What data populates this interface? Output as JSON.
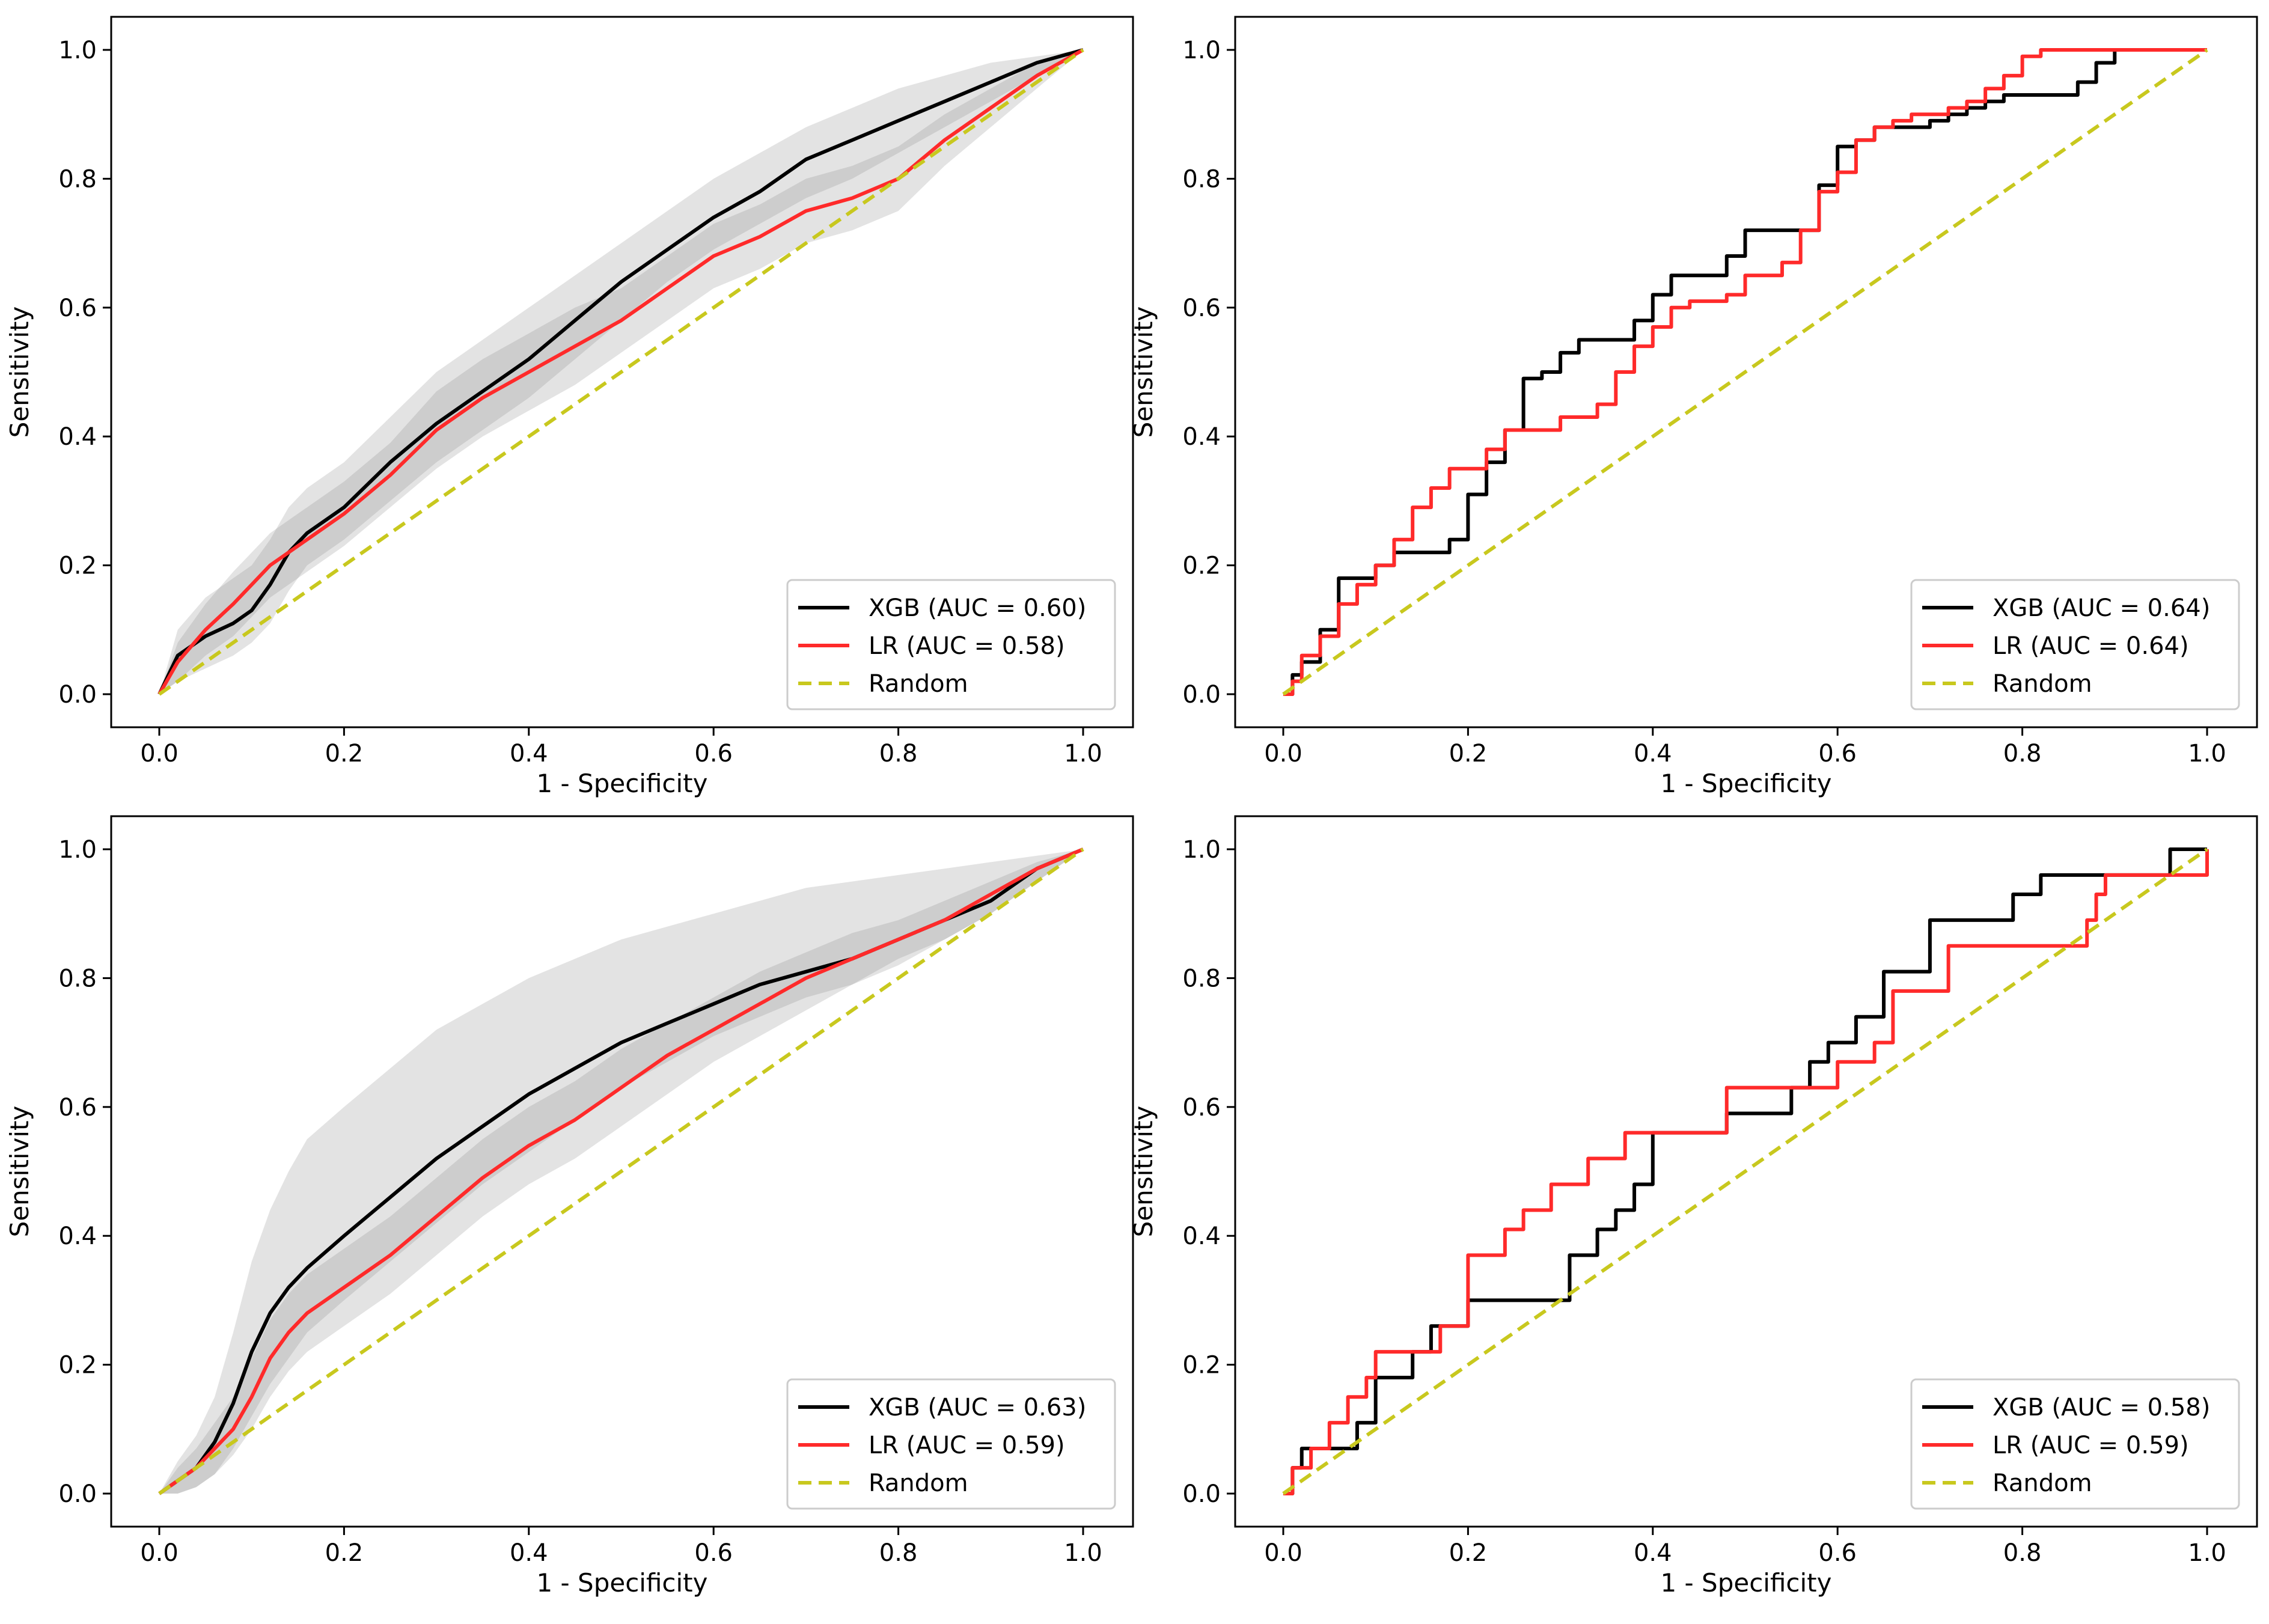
{
  "chart_data": [
    {
      "type": "line",
      "panel": "top-left",
      "xlabel": "1 - Specificity",
      "ylabel": "Sensitivity",
      "xlim": [
        0,
        1
      ],
      "ylim": [
        0,
        1
      ],
      "xticks": [
        "0.0",
        "0.2",
        "0.4",
        "0.6",
        "0.8",
        "1.0"
      ],
      "yticks": [
        "0.0",
        "0.2",
        "0.4",
        "0.6",
        "0.8",
        "1.0"
      ],
      "legend_position": "lower-right",
      "series": [
        {
          "name": "XGB (AUC = 0.60)",
          "color": "#000000",
          "style": "solid",
          "x": [
            0,
            0.02,
            0.05,
            0.08,
            0.1,
            0.12,
            0.14,
            0.16,
            0.2,
            0.25,
            0.3,
            0.35,
            0.4,
            0.45,
            0.5,
            0.55,
            0.6,
            0.65,
            0.7,
            0.75,
            0.8,
            0.85,
            0.9,
            0.95,
            1.0
          ],
          "y": [
            0,
            0.06,
            0.09,
            0.11,
            0.13,
            0.17,
            0.22,
            0.25,
            0.29,
            0.36,
            0.42,
            0.47,
            0.52,
            0.58,
            0.64,
            0.69,
            0.74,
            0.78,
            0.83,
            0.86,
            0.89,
            0.92,
            0.95,
            0.98,
            1.0
          ],
          "band": {
            "lower": [
              0,
              0.02,
              0.04,
              0.06,
              0.08,
              0.11,
              0.16,
              0.2,
              0.24,
              0.3,
              0.36,
              0.41,
              0.46,
              0.52,
              0.58,
              0.64,
              0.69,
              0.73,
              0.77,
              0.8,
              0.84,
              0.88,
              0.92,
              0.96,
              1.0
            ],
            "upper": [
              0,
              0.1,
              0.15,
              0.18,
              0.2,
              0.24,
              0.29,
              0.32,
              0.36,
              0.43,
              0.5,
              0.55,
              0.6,
              0.65,
              0.7,
              0.75,
              0.8,
              0.84,
              0.88,
              0.91,
              0.94,
              0.96,
              0.98,
              0.99,
              1.0
            ]
          }
        },
        {
          "name": "LR (AUC = 0.58)",
          "color": "#ff2a2a",
          "style": "solid",
          "x": [
            0,
            0.02,
            0.05,
            0.08,
            0.1,
            0.12,
            0.15,
            0.2,
            0.25,
            0.3,
            0.35,
            0.4,
            0.45,
            0.5,
            0.55,
            0.6,
            0.65,
            0.7,
            0.75,
            0.8,
            0.85,
            0.9,
            0.95,
            1.0
          ],
          "y": [
            0,
            0.05,
            0.1,
            0.14,
            0.17,
            0.2,
            0.23,
            0.28,
            0.34,
            0.41,
            0.46,
            0.5,
            0.54,
            0.58,
            0.63,
            0.68,
            0.71,
            0.75,
            0.77,
            0.8,
            0.86,
            0.91,
            0.96,
            1.0
          ],
          "band": {
            "lower": [
              0,
              0.02,
              0.06,
              0.09,
              0.12,
              0.15,
              0.18,
              0.23,
              0.29,
              0.35,
              0.4,
              0.44,
              0.48,
              0.53,
              0.58,
              0.63,
              0.66,
              0.7,
              0.72,
              0.75,
              0.82,
              0.88,
              0.94,
              1.0
            ],
            "upper": [
              0,
              0.08,
              0.14,
              0.19,
              0.22,
              0.25,
              0.28,
              0.33,
              0.39,
              0.47,
              0.52,
              0.56,
              0.6,
              0.63,
              0.68,
              0.73,
              0.76,
              0.8,
              0.82,
              0.85,
              0.9,
              0.94,
              0.98,
              1.0
            ]
          }
        },
        {
          "name": "Random",
          "color": "#c8c81e",
          "style": "dashed",
          "x": [
            0,
            1
          ],
          "y": [
            0,
            1
          ]
        }
      ]
    },
    {
      "type": "line",
      "panel": "top-right",
      "xlabel": "1 - Specificity",
      "ylabel": "Sensitivity",
      "xlim": [
        0,
        1
      ],
      "ylim": [
        0,
        1
      ],
      "xticks": [
        "0.0",
        "0.2",
        "0.4",
        "0.6",
        "0.8",
        "1.0"
      ],
      "yticks": [
        "0.0",
        "0.2",
        "0.4",
        "0.6",
        "0.8",
        "1.0"
      ],
      "legend_position": "lower-right",
      "series": [
        {
          "name": "XGB (AUC = 0.64)",
          "color": "#000000",
          "style": "step",
          "x": [
            0,
            0.01,
            0.02,
            0.04,
            0.06,
            0.08,
            0.1,
            0.12,
            0.14,
            0.16,
            0.18,
            0.2,
            0.22,
            0.24,
            0.26,
            0.28,
            0.3,
            0.32,
            0.34,
            0.36,
            0.38,
            0.4,
            0.42,
            0.44,
            0.46,
            0.48,
            0.5,
            0.52,
            0.54,
            0.56,
            0.58,
            0.6,
            0.62,
            0.64,
            0.66,
            0.68,
            0.7,
            0.72,
            0.74,
            0.76,
            0.78,
            0.8,
            0.82,
            0.84,
            0.86,
            0.88,
            0.9,
            1.0
          ],
          "y": [
            0,
            0.03,
            0.05,
            0.1,
            0.18,
            0.18,
            0.2,
            0.22,
            0.22,
            0.22,
            0.24,
            0.31,
            0.36,
            0.41,
            0.49,
            0.5,
            0.53,
            0.55,
            0.55,
            0.55,
            0.58,
            0.62,
            0.65,
            0.65,
            0.65,
            0.68,
            0.72,
            0.72,
            0.72,
            0.72,
            0.79,
            0.85,
            0.86,
            0.88,
            0.88,
            0.88,
            0.89,
            0.9,
            0.91,
            0.92,
            0.93,
            0.93,
            0.93,
            0.93,
            0.95,
            0.98,
            1.0,
            1.0
          ]
        },
        {
          "name": "LR (AUC = 0.64)",
          "color": "#ff2a2a",
          "style": "step",
          "x": [
            0,
            0.01,
            0.02,
            0.04,
            0.06,
            0.08,
            0.1,
            0.12,
            0.14,
            0.16,
            0.18,
            0.2,
            0.22,
            0.24,
            0.26,
            0.28,
            0.3,
            0.32,
            0.34,
            0.36,
            0.38,
            0.4,
            0.42,
            0.44,
            0.46,
            0.48,
            0.5,
            0.52,
            0.54,
            0.56,
            0.58,
            0.6,
            0.62,
            0.64,
            0.66,
            0.68,
            0.7,
            0.72,
            0.74,
            0.76,
            0.78,
            0.8,
            0.82,
            1.0
          ],
          "y": [
            0,
            0.02,
            0.06,
            0.09,
            0.14,
            0.17,
            0.2,
            0.24,
            0.29,
            0.32,
            0.35,
            0.35,
            0.38,
            0.41,
            0.41,
            0.41,
            0.43,
            0.43,
            0.45,
            0.5,
            0.54,
            0.57,
            0.6,
            0.61,
            0.61,
            0.62,
            0.65,
            0.65,
            0.67,
            0.72,
            0.78,
            0.81,
            0.86,
            0.88,
            0.89,
            0.9,
            0.9,
            0.91,
            0.92,
            0.94,
            0.96,
            0.99,
            1.0,
            1.0
          ]
        },
        {
          "name": "Random",
          "color": "#c8c81e",
          "style": "dashed",
          "x": [
            0,
            1
          ],
          "y": [
            0,
            1
          ]
        }
      ]
    },
    {
      "type": "line",
      "panel": "bottom-left",
      "xlabel": "1 - Specificity",
      "ylabel": "Sensitivity",
      "xlim": [
        0,
        1
      ],
      "ylim": [
        0,
        1
      ],
      "xticks": [
        "0.0",
        "0.2",
        "0.4",
        "0.6",
        "0.8",
        "1.0"
      ],
      "yticks": [
        "0.0",
        "0.2",
        "0.4",
        "0.6",
        "0.8",
        "1.0"
      ],
      "legend_position": "lower-right",
      "series": [
        {
          "name": "XGB (AUC = 0.63)",
          "color": "#000000",
          "style": "solid",
          "x": [
            0,
            0.02,
            0.04,
            0.06,
            0.08,
            0.1,
            0.12,
            0.14,
            0.16,
            0.2,
            0.25,
            0.3,
            0.35,
            0.4,
            0.45,
            0.5,
            0.55,
            0.6,
            0.65,
            0.7,
            0.75,
            0.8,
            0.85,
            0.9,
            0.95,
            1.0
          ],
          "y": [
            0,
            0.02,
            0.04,
            0.08,
            0.14,
            0.22,
            0.28,
            0.32,
            0.35,
            0.4,
            0.46,
            0.52,
            0.57,
            0.62,
            0.66,
            0.7,
            0.73,
            0.76,
            0.79,
            0.81,
            0.83,
            0.86,
            0.89,
            0.92,
            0.97,
            1.0
          ],
          "band": {
            "lower": [
              0,
              0.0,
              0.01,
              0.03,
              0.07,
              0.12,
              0.17,
              0.21,
              0.25,
              0.3,
              0.36,
              0.42,
              0.48,
              0.53,
              0.58,
              0.63,
              0.67,
              0.71,
              0.74,
              0.77,
              0.79,
              0.82,
              0.86,
              0.9,
              0.95,
              1.0
            ],
            "upper": [
              0,
              0.05,
              0.09,
              0.15,
              0.25,
              0.36,
              0.44,
              0.5,
              0.55,
              0.6,
              0.66,
              0.72,
              0.76,
              0.8,
              0.83,
              0.86,
              0.88,
              0.9,
              0.92,
              0.94,
              0.95,
              0.96,
              0.97,
              0.98,
              0.99,
              1.0
            ]
          }
        },
        {
          "name": "LR (AUC = 0.59)",
          "color": "#ff2a2a",
          "style": "solid",
          "x": [
            0,
            0.02,
            0.04,
            0.06,
            0.08,
            0.1,
            0.12,
            0.14,
            0.16,
            0.2,
            0.25,
            0.3,
            0.35,
            0.4,
            0.45,
            0.5,
            0.55,
            0.6,
            0.65,
            0.7,
            0.75,
            0.8,
            0.85,
            0.9,
            0.95,
            1.0
          ],
          "y": [
            0,
            0.02,
            0.04,
            0.07,
            0.1,
            0.15,
            0.21,
            0.25,
            0.28,
            0.32,
            0.37,
            0.43,
            0.49,
            0.54,
            0.58,
            0.63,
            0.68,
            0.72,
            0.76,
            0.8,
            0.83,
            0.86,
            0.89,
            0.93,
            0.97,
            1.0
          ],
          "band": {
            "lower": [
              0,
              0.0,
              0.01,
              0.03,
              0.06,
              0.1,
              0.15,
              0.19,
              0.22,
              0.26,
              0.31,
              0.37,
              0.43,
              0.48,
              0.52,
              0.57,
              0.62,
              0.67,
              0.71,
              0.75,
              0.79,
              0.83,
              0.86,
              0.9,
              0.95,
              1.0
            ],
            "upper": [
              0,
              0.04,
              0.07,
              0.11,
              0.15,
              0.21,
              0.27,
              0.31,
              0.34,
              0.38,
              0.43,
              0.49,
              0.55,
              0.6,
              0.64,
              0.69,
              0.73,
              0.77,
              0.81,
              0.84,
              0.87,
              0.89,
              0.92,
              0.95,
              0.98,
              1.0
            ]
          }
        },
        {
          "name": "Random",
          "color": "#c8c81e",
          "style": "dashed",
          "x": [
            0,
            1
          ],
          "y": [
            0,
            1
          ]
        }
      ]
    },
    {
      "type": "line",
      "panel": "bottom-right",
      "xlabel": "1 - Specificity",
      "ylabel": "Sensitivity",
      "xlim": [
        0,
        1
      ],
      "ylim": [
        0,
        1
      ],
      "xticks": [
        "0.0",
        "0.2",
        "0.4",
        "0.6",
        "0.8",
        "1.0"
      ],
      "yticks": [
        "0.0",
        "0.2",
        "0.4",
        "0.6",
        "0.8",
        "1.0"
      ],
      "legend_position": "lower-right",
      "series": [
        {
          "name": "XGB (AUC = 0.58)",
          "color": "#000000",
          "style": "step",
          "x": [
            0,
            0.01,
            0.02,
            0.04,
            0.06,
            0.08,
            0.1,
            0.12,
            0.14,
            0.16,
            0.18,
            0.2,
            0.24,
            0.28,
            0.3,
            0.31,
            0.32,
            0.34,
            0.36,
            0.38,
            0.4,
            0.42,
            0.46,
            0.48,
            0.52,
            0.55,
            0.57,
            0.59,
            0.62,
            0.65,
            0.68,
            0.7,
            0.72,
            0.76,
            0.79,
            0.82,
            0.86,
            0.9,
            0.96,
            1.0
          ],
          "y": [
            0,
            0.04,
            0.07,
            0.07,
            0.07,
            0.11,
            0.18,
            0.18,
            0.22,
            0.26,
            0.26,
            0.3,
            0.3,
            0.3,
            0.3,
            0.37,
            0.37,
            0.41,
            0.44,
            0.48,
            0.56,
            0.56,
            0.56,
            0.59,
            0.59,
            0.63,
            0.67,
            0.7,
            0.74,
            0.81,
            0.81,
            0.89,
            0.89,
            0.89,
            0.93,
            0.96,
            0.96,
            0.96,
            1.0,
            1.0
          ]
        },
        {
          "name": "LR (AUC = 0.59)",
          "color": "#ff2a2a",
          "style": "step",
          "x": [
            0,
            0.01,
            0.03,
            0.05,
            0.07,
            0.09,
            0.1,
            0.14,
            0.17,
            0.2,
            0.24,
            0.26,
            0.29,
            0.33,
            0.37,
            0.4,
            0.44,
            0.48,
            0.52,
            0.56,
            0.6,
            0.62,
            0.64,
            0.66,
            0.7,
            0.72,
            0.8,
            0.86,
            0.87,
            0.88,
            0.89,
            0.95,
            0.99,
            1.0
          ],
          "y": [
            0,
            0.04,
            0.07,
            0.11,
            0.15,
            0.18,
            0.22,
            0.22,
            0.26,
            0.37,
            0.41,
            0.44,
            0.48,
            0.52,
            0.56,
            0.56,
            0.56,
            0.63,
            0.63,
            0.63,
            0.67,
            0.67,
            0.7,
            0.78,
            0.78,
            0.85,
            0.85,
            0.85,
            0.89,
            0.93,
            0.96,
            0.96,
            0.96,
            1.0
          ]
        },
        {
          "name": "Random",
          "color": "#c8c81e",
          "style": "dashed",
          "x": [
            0,
            1
          ],
          "y": [
            0,
            1
          ]
        }
      ]
    }
  ]
}
